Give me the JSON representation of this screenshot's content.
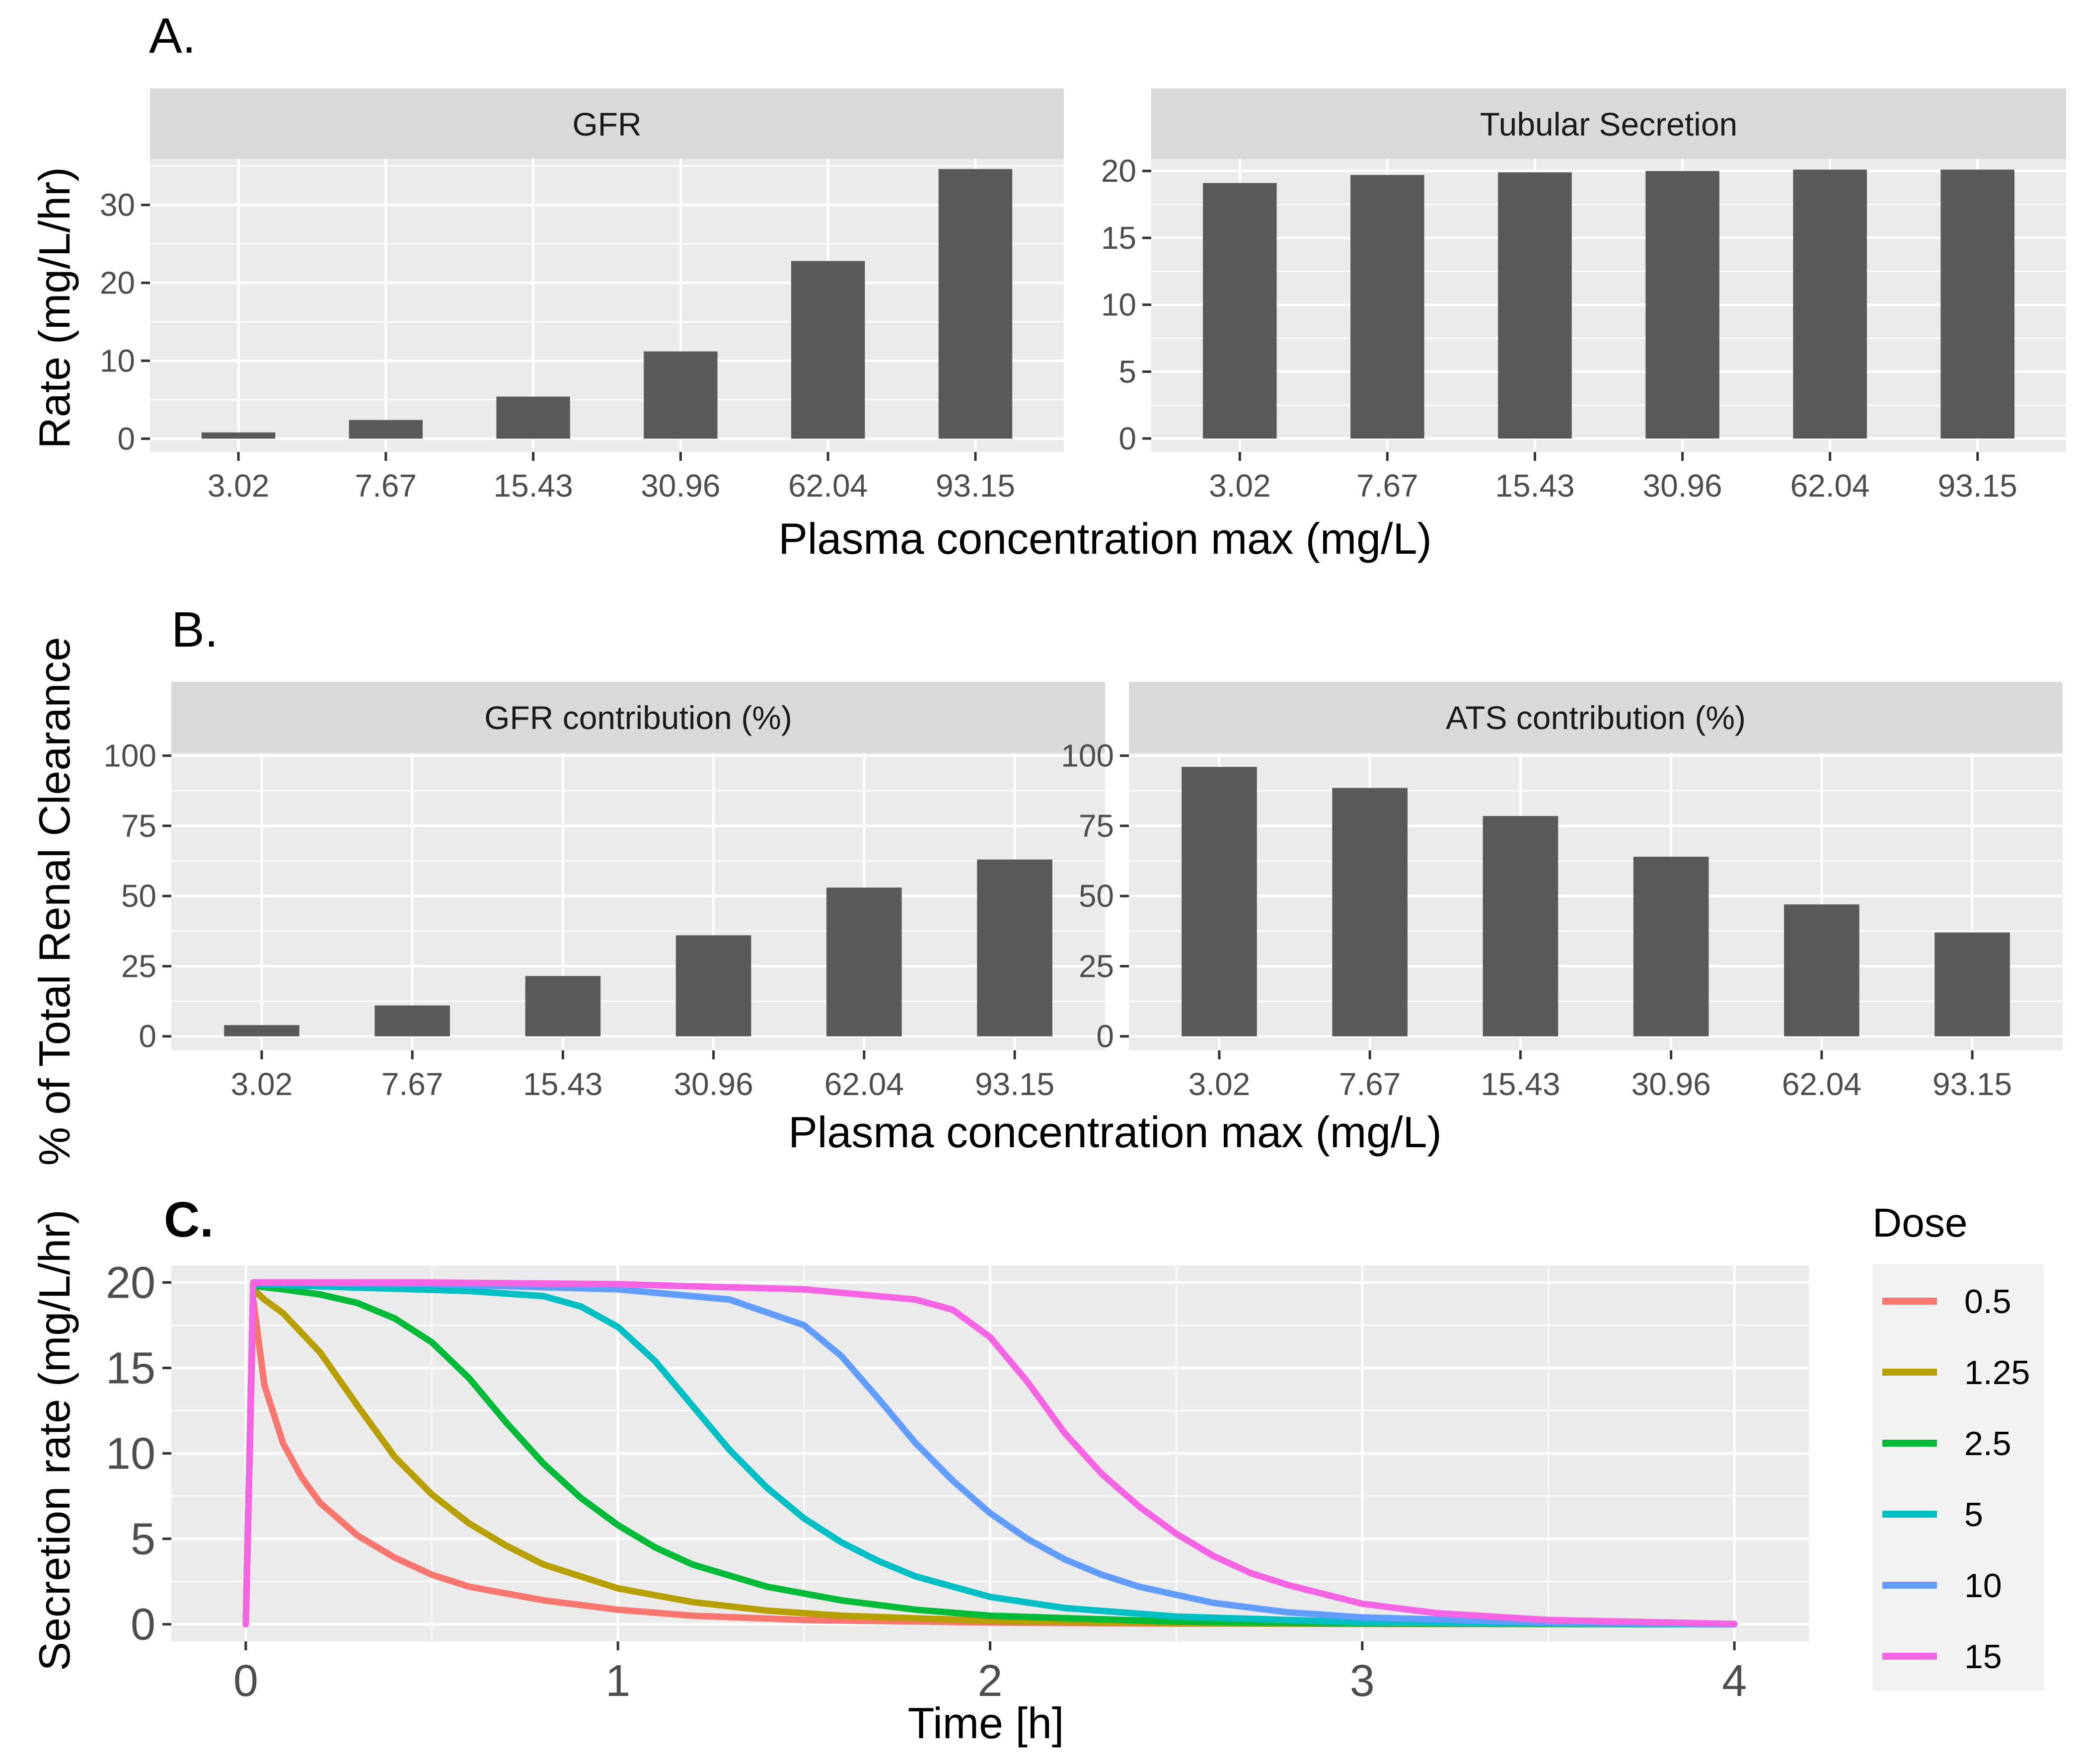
{
  "figure": {
    "panel_labels": {
      "a": "A.",
      "b": "B.",
      "c": "C."
    }
  },
  "chart_data": [
    {
      "id": "A1",
      "type": "bar",
      "panel": "A.",
      "title": "GFR",
      "categories": [
        "3.02",
        "7.67",
        "15.43",
        "30.96",
        "62.04",
        "93.15"
      ],
      "values": [
        0.8,
        2.4,
        5.4,
        11.2,
        22.8,
        34.6
      ],
      "ylabel": "Rate (mg/L/hr)",
      "xlabel": "Plasma concentration max (mg/L)",
      "ylim": [
        -1.7,
        35.9
      ],
      "yticks": [
        0,
        10,
        20,
        30
      ],
      "yminor": [
        5,
        15,
        25,
        35
      ],
      "color": "#595959"
    },
    {
      "id": "A2",
      "type": "bar",
      "panel": "A.",
      "title": "Tubular Secretion",
      "categories": [
        "3.02",
        "7.67",
        "15.43",
        "30.96",
        "62.04",
        "93.15"
      ],
      "values": [
        19.1,
        19.7,
        19.9,
        20.0,
        20.1,
        20.1
      ],
      "ylabel": "",
      "xlabel": "Plasma concentration max (mg/L)",
      "ylim": [
        -1.0,
        20.9
      ],
      "yticks": [
        0,
        5,
        10,
        15,
        20
      ],
      "yminor": [
        2.5,
        7.5,
        12.5,
        17.5
      ],
      "color": "#595959"
    },
    {
      "id": "B1",
      "type": "bar",
      "panel": "B.",
      "title": "GFR contribution (%)",
      "categories": [
        "3.02",
        "7.67",
        "15.43",
        "30.96",
        "62.04",
        "93.15"
      ],
      "values": [
        4,
        11,
        21.5,
        36,
        53,
        63
      ],
      "ylabel": "% of Total Renal Clearance",
      "xlabel": "Plasma concentration max (mg/L)",
      "ylim": [
        -5,
        101
      ],
      "yticks": [
        0,
        25,
        50,
        75,
        100
      ],
      "yminor": [
        12.5,
        37.5,
        62.5,
        87.5
      ],
      "color": "#595959"
    },
    {
      "id": "B2",
      "type": "bar",
      "panel": "B.",
      "title": "ATS contribution (%)",
      "categories": [
        "3.02",
        "7.67",
        "15.43",
        "30.96",
        "62.04",
        "93.15"
      ],
      "values": [
        96,
        88.5,
        78.5,
        64,
        47,
        37
      ],
      "ylabel": "",
      "xlabel": "Plasma concentration max (mg/L)",
      "ylim": [
        -5,
        101
      ],
      "yticks": [
        0,
        25,
        50,
        75,
        100
      ],
      "yminor": [
        12.5,
        37.5,
        62.5,
        87.5
      ],
      "color": "#595959"
    },
    {
      "id": "C",
      "type": "line",
      "panel": "C.",
      "title": "",
      "xlabel": "Time [h]",
      "ylabel": "Secretion rate (mg/L/hr)",
      "xlim": [
        -0.2,
        4.2
      ],
      "ylim": [
        -1,
        21
      ],
      "xticks": [
        0,
        1,
        2,
        3,
        4
      ],
      "xminor": [
        0.5,
        1.5,
        2.5,
        3.5
      ],
      "yticks": [
        0,
        5,
        10,
        15,
        20
      ],
      "yminor": [
        2.5,
        7.5,
        12.5,
        17.5
      ],
      "legend": {
        "title": "Dose",
        "position": "right"
      },
      "series": [
        {
          "name": "0.5",
          "color": "#F8766D",
          "x": [
            0,
            0.02,
            0.05,
            0.1,
            0.15,
            0.2,
            0.3,
            0.4,
            0.5,
            0.6,
            0.8,
            1.0,
            1.2,
            1.5,
            2.0,
            2.5,
            3.0,
            3.5,
            4.0
          ],
          "y": [
            0,
            19.0,
            14.0,
            10.6,
            8.6,
            7.1,
            5.2,
            3.9,
            2.9,
            2.2,
            1.4,
            0.85,
            0.5,
            0.25,
            0.1,
            0.04,
            0.02,
            0.01,
            0
          ]
        },
        {
          "name": "1.25",
          "color": "#B79F00",
          "x": [
            0,
            0.02,
            0.05,
            0.1,
            0.2,
            0.3,
            0.4,
            0.5,
            0.6,
            0.7,
            0.8,
            1.0,
            1.2,
            1.4,
            1.6,
            2.0,
            2.5,
            3.0,
            3.5,
            4.0
          ],
          "y": [
            0,
            19.6,
            19.0,
            18.2,
            15.9,
            12.8,
            9.8,
            7.6,
            5.9,
            4.6,
            3.5,
            2.1,
            1.3,
            0.8,
            0.5,
            0.2,
            0.07,
            0.03,
            0.01,
            0
          ]
        },
        {
          "name": "2.5",
          "color": "#00BA38",
          "x": [
            0,
            0.02,
            0.1,
            0.2,
            0.3,
            0.4,
            0.5,
            0.6,
            0.7,
            0.8,
            0.9,
            1.0,
            1.1,
            1.2,
            1.4,
            1.6,
            1.8,
            2.0,
            2.5,
            3.0,
            3.5,
            4.0
          ],
          "y": [
            0,
            19.8,
            19.6,
            19.3,
            18.8,
            17.9,
            16.5,
            14.4,
            11.8,
            9.4,
            7.4,
            5.8,
            4.5,
            3.5,
            2.2,
            1.4,
            0.85,
            0.5,
            0.15,
            0.05,
            0.02,
            0
          ]
        },
        {
          "name": "5",
          "color": "#00BFC4",
          "x": [
            0,
            0.02,
            0.3,
            0.6,
            0.8,
            0.9,
            1.0,
            1.1,
            1.2,
            1.3,
            1.4,
            1.5,
            1.6,
            1.7,
            1.8,
            2.0,
            2.2,
            2.5,
            3.0,
            3.5,
            4.0
          ],
          "y": [
            0,
            19.9,
            19.7,
            19.5,
            19.2,
            18.6,
            17.4,
            15.4,
            12.8,
            10.2,
            8.0,
            6.2,
            4.8,
            3.7,
            2.8,
            1.6,
            0.95,
            0.45,
            0.12,
            0.03,
            0
          ]
        },
        {
          "name": "10",
          "color": "#619CFF",
          "x": [
            0,
            0.02,
            0.5,
            1.0,
            1.3,
            1.5,
            1.6,
            1.7,
            1.8,
            1.9,
            2.0,
            2.1,
            2.2,
            2.3,
            2.4,
            2.6,
            2.8,
            3.0,
            3.5,
            4.0
          ],
          "y": [
            0,
            20.0,
            19.9,
            19.6,
            19.0,
            17.5,
            15.7,
            13.2,
            10.6,
            8.4,
            6.5,
            5.0,
            3.8,
            2.9,
            2.2,
            1.25,
            0.7,
            0.4,
            0.1,
            0
          ]
        },
        {
          "name": "15",
          "color": "#F564E3",
          "x": [
            0,
            0.02,
            0.5,
            1.0,
            1.5,
            1.8,
            1.9,
            2.0,
            2.1,
            2.2,
            2.3,
            2.4,
            2.5,
            2.6,
            2.7,
            2.8,
            3.0,
            3.2,
            3.5,
            4.0
          ],
          "y": [
            0,
            20.0,
            20.0,
            19.9,
            19.6,
            19.0,
            18.4,
            16.8,
            14.2,
            11.2,
            8.8,
            6.9,
            5.3,
            4.0,
            3.0,
            2.3,
            1.2,
            0.65,
            0.25,
            0.02
          ]
        }
      ]
    }
  ]
}
